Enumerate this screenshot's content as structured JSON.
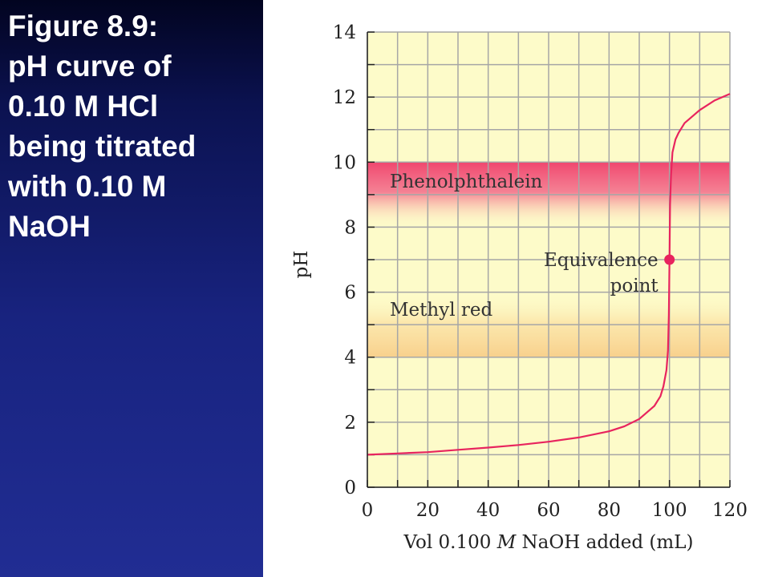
{
  "caption": {
    "lines": [
      "Figure 8.9:",
      "pH curve of",
      "0.10 M HCl",
      "being titrated",
      "with 0.10 M",
      "NaOH"
    ]
  },
  "colors": {
    "panel_background": "#1a237f",
    "plot_background": "#fdfbc9",
    "grid": "#a6a6a6",
    "curve": "#e8245e",
    "phenolphthalein_band": "#f0486f",
    "methyl_red_band": "#f9d592"
  },
  "chart_data": {
    "type": "line",
    "title": "",
    "xlabel_prefix": "Vol 0.100 ",
    "xlabel_italic": "M",
    "xlabel_suffix": " NaOH added (mL)",
    "ylabel": "pH",
    "xlim": [
      0,
      120
    ],
    "ylim": [
      0,
      14
    ],
    "x_ticks": [
      "0",
      "20",
      "40",
      "60",
      "80",
      "100",
      "120"
    ],
    "y_ticks": [
      "0",
      "2",
      "4",
      "6",
      "8",
      "10",
      "12",
      "14"
    ],
    "grid": true,
    "series": [
      {
        "x": [
          0,
          10,
          20,
          30,
          40,
          50,
          60,
          70,
          80,
          85,
          90,
          95,
          97,
          98,
          99,
          99.5,
          99.8,
          100,
          100.2,
          100.5,
          101,
          102,
          103,
          105,
          110,
          115,
          120
        ],
        "y": [
          1.0,
          1.04,
          1.08,
          1.15,
          1.22,
          1.3,
          1.4,
          1.53,
          1.72,
          1.87,
          2.1,
          2.5,
          2.8,
          3.1,
          3.6,
          4.2,
          5.3,
          7.0,
          8.7,
          9.6,
          10.3,
          10.7,
          10.9,
          11.2,
          11.6,
          11.9,
          12.1
        ]
      }
    ],
    "bands": [
      {
        "label": "Phenolphthalein",
        "y_range": [
          8,
          10
        ]
      },
      {
        "label": "Methyl red",
        "y_range": [
          4,
          6
        ]
      }
    ],
    "annotations": [
      {
        "line1": "Equivalence",
        "line2": "point",
        "x": 100,
        "y": 7
      }
    ]
  }
}
